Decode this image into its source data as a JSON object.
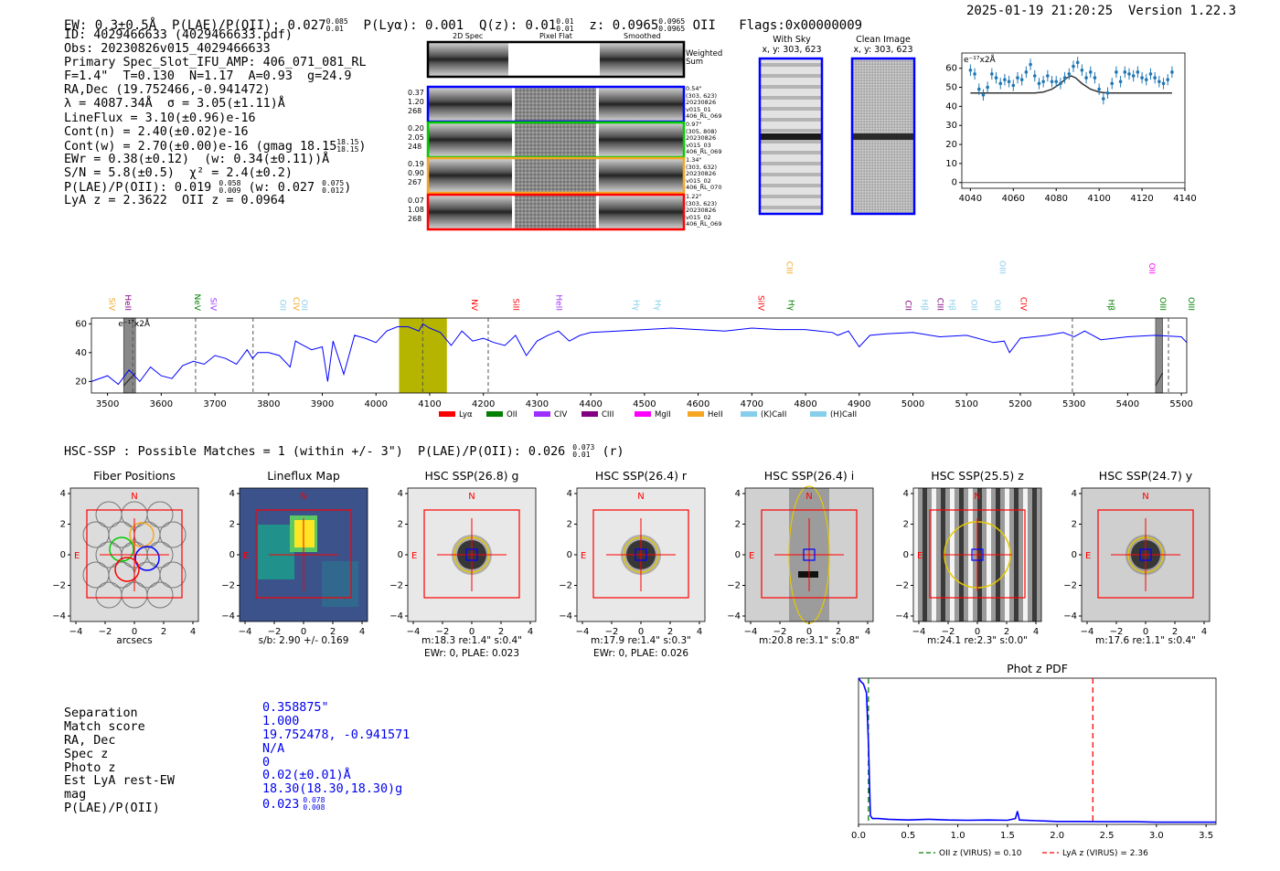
{
  "header": {
    "ew": "EW: 0.3±0.5Å",
    "plae_label": "P(LAE)/P(OII): 0.027",
    "plae_hi": "0.085",
    "plae_lo": "0.01",
    "plya": "P(Lyα): 0.001",
    "qz_label": "Q(z): 0.01",
    "qz_hi": "0.01",
    "qz_lo": "0.01",
    "z_label": "z: 0.0965",
    "z_hi": "0.0965",
    "z_lo": "0.0965",
    "z_line": "OII",
    "flags": "Flags:0x00000009",
    "datetime": "2025-01-19 21:20:25  Version 1.22.3"
  },
  "info": {
    "l1": "ID: 4029466633 (4029466633.pdf)",
    "l2": "Obs: 20230826v015_4029466633",
    "l3": "Primary Spec_Slot_IFU_AMP: 406_071_081_RL",
    "l4": "F=1.4\"  T=0.130  N=1.17  A=0.93  g=24.9",
    "l5": "RA,Dec (19.752466,-0.941472)",
    "l6": "λ = 4087.34Å  σ = 3.05(±1.11)Å",
    "l7": "LineFlux = 3.10(±0.96)e-16",
    "l8": "Cont(n) = 2.40(±0.02)e-16",
    "l9": "Cont(w) = 2.70(±0.00)e-16 (gmag 18.15",
    "l9_hi": "18.15",
    "l9_lo": "18.15",
    "l9_end": ")",
    "l10": "EWr = 0.38(±0.12)  (w: 0.34(±0.11))Å",
    "l11": "S/N = 5.8(±0.5)  χ² = 2.4(±0.2)",
    "l12": "P(LAE)/P(OII): 0.019",
    "l12_hi": "0.058",
    "l12_lo": "0.009",
    "l12_mid": "(w: 0.027",
    "l12_hi2": "0.075",
    "l12_lo2": "0.012",
    "l12_end": ")",
    "l13": "LyA z = 2.3622  OII z = 0.0964"
  },
  "cutouts": {
    "col_2d": "2D Spec",
    "col_flat": "Pixel Flat",
    "col_smooth": "Smoothed",
    "weighted": "Weighted",
    "sum": "Sum",
    "rows": [
      {
        "a": "0.37",
        "b": "1.20",
        "c": "268",
        "d1": "0.54\"",
        "d2": "(303, 623)",
        "d3": "20230826",
        "d4": "v015_01",
        "d5": "406_RL_069"
      },
      {
        "a": "0.20",
        "b": "2.05",
        "c": "248",
        "d1": "0.97\"",
        "d2": "(305, 808)",
        "d3": "20230826",
        "d4": "v015_03",
        "d5": "406_RL_069"
      },
      {
        "a": "0.19",
        "b": "0.90",
        "c": "267",
        "d1": "1.34\"",
        "d2": "(303, 632)",
        "d3": "20230826",
        "d4": "v015_02",
        "d5": "406_RL_070"
      },
      {
        "a": "0.07",
        "b": "1.08",
        "c": "268",
        "d1": "1.22\"",
        "d2": "(303, 623)",
        "d3": "20230826",
        "d4": "v015_02",
        "d5": "406_RL_069"
      }
    ],
    "with_sky": "With Sky",
    "with_sky_xy": "x, y: 303, 623",
    "clean": "Clean Image",
    "clean_xy": "x, y: 303, 623"
  },
  "colors": {
    "blue": "#0000ff",
    "green": "#00cc00",
    "orange": "#f5a623",
    "red": "#ff0000",
    "olive": "#b5b500",
    "mpl": "#1f77b4"
  },
  "chart_data": [
    {
      "type": "scatter",
      "name": "line-fit",
      "ylabel": "e⁻¹⁷x2Å",
      "x": [
        4040,
        4042,
        4044,
        4046,
        4048,
        4050,
        4052,
        4054,
        4056,
        4058,
        4060,
        4062,
        4064,
        4066,
        4068,
        4070,
        4072,
        4074,
        4076,
        4078,
        4080,
        4082,
        4084,
        4086,
        4088,
        4090,
        4092,
        4094,
        4096,
        4098,
        4100,
        4102,
        4104,
        4106,
        4108,
        4110,
        4112,
        4114,
        4116,
        4118,
        4120,
        4122,
        4124,
        4126,
        4128,
        4130,
        4132,
        4134
      ],
      "y": [
        59,
        57,
        49,
        46,
        50,
        57,
        55,
        52,
        54,
        53,
        51,
        55,
        54,
        58,
        62,
        56,
        52,
        53,
        56,
        53,
        53,
        52,
        55,
        57,
        61,
        63,
        59,
        55,
        58,
        55,
        49,
        44,
        47,
        52,
        58,
        53,
        58,
        57,
        56,
        58,
        55,
        54,
        57,
        55,
        53,
        52,
        54,
        58
      ],
      "fit_x": [
        4040,
        4070,
        4074,
        4078,
        4082,
        4085,
        4087,
        4089,
        4092,
        4096,
        4100,
        4104,
        4134
      ],
      "fit_y": [
        47,
        47,
        47.5,
        49,
        52,
        55,
        56,
        55,
        52,
        49,
        47.5,
        47,
        47
      ],
      "xlim": [
        4036,
        4140
      ],
      "ylim": [
        -3,
        68
      ],
      "xticks": [
        4040,
        4060,
        4080,
        4100,
        4120,
        4140
      ],
      "yticks": [
        0,
        10,
        20,
        30,
        40,
        50,
        60
      ]
    },
    {
      "type": "line",
      "name": "full-spectrum",
      "ylabel": "e⁻¹⁷x2Å",
      "xlim": [
        3470,
        5510
      ],
      "ylim": [
        12,
        64
      ],
      "xticks": [
        3500,
        3600,
        3700,
        3800,
        3900,
        4000,
        4100,
        4200,
        4300,
        4400,
        4500,
        4600,
        4700,
        4800,
        4900,
        5000,
        5100,
        5200,
        5300,
        5400,
        5500
      ],
      "yticks": [
        20,
        40,
        60
      ],
      "x": [
        3470,
        3500,
        3520,
        3540,
        3560,
        3580,
        3600,
        3620,
        3640,
        3660,
        3680,
        3700,
        3720,
        3740,
        3760,
        3770,
        3780,
        3800,
        3820,
        3840,
        3850,
        3860,
        3880,
        3900,
        3910,
        3920,
        3940,
        3960,
        3980,
        4000,
        4020,
        4040,
        4060,
        4080,
        4087,
        4100,
        4120,
        4140,
        4160,
        4180,
        4200,
        4220,
        4240,
        4260,
        4280,
        4300,
        4320,
        4340,
        4360,
        4380,
        4400,
        4450,
        4500,
        4550,
        4600,
        4650,
        4700,
        4750,
        4800,
        4850,
        4860,
        4880,
        4900,
        4920,
        4950,
        5000,
        5050,
        5100,
        5150,
        5170,
        5180,
        5200,
        5250,
        5280,
        5300,
        5320,
        5350,
        5400,
        5450,
        5500,
        5510
      ],
      "y": [
        20,
        24,
        18,
        28,
        20,
        30,
        24,
        22,
        31,
        34,
        32,
        38,
        36,
        32,
        42,
        36,
        40,
        40,
        38,
        30,
        48,
        46,
        42,
        44,
        20,
        48,
        25,
        52,
        50,
        47,
        55,
        58,
        58,
        55,
        60,
        57,
        54,
        45,
        55,
        48,
        50,
        47,
        45,
        52,
        38,
        48,
        52,
        55,
        48,
        52,
        54,
        55,
        56,
        57,
        56,
        55,
        57,
        56,
        56,
        54,
        52,
        55,
        44,
        52,
        53,
        54,
        51,
        52,
        47,
        48,
        40,
        50,
        52,
        54,
        51,
        55,
        49,
        51,
        52,
        51,
        47
      ],
      "bands": [
        {
          "x1": 4043,
          "x2": 4132,
          "kind": "olive"
        },
        {
          "x1": 3530,
          "x2": 3552,
          "kind": "gray"
        },
        {
          "x1": 5452,
          "x2": 5465,
          "kind": "gray"
        }
      ],
      "vlines": [
        3547,
        3664,
        3771,
        4087,
        4209,
        5297,
        5476
      ],
      "lines": [
        {
          "label": "SiV",
          "x": 3503,
          "color": "#f5a623"
        },
        {
          "label": "HeII",
          "x": 3533,
          "color": "#800080"
        },
        {
          "label": "NeV",
          "x": 3662,
          "color": "#008000"
        },
        {
          "label": "SiV",
          "x": 3692,
          "color": "#9b30ff"
        },
        {
          "label": "OII",
          "x": 3822,
          "color": "#87ceeb"
        },
        {
          "label": "CIV",
          "x": 3846,
          "color": "#f5a623"
        },
        {
          "label": "OII",
          "x": 3862,
          "color": "#87ceeb"
        },
        {
          "label": "NV",
          "x": 4178,
          "color": "#ff0000"
        },
        {
          "label": "SiII",
          "x": 4256,
          "color": "#ff0000"
        },
        {
          "label": "HeII",
          "x": 4336,
          "color": "#9b30ff"
        },
        {
          "label": "Hγ",
          "x": 4480,
          "color": "#87ceeb"
        },
        {
          "label": "Hγ",
          "x": 4520,
          "color": "#87ceeb"
        },
        {
          "label": "SiIV",
          "x": 4712,
          "color": "#ff0000"
        },
        {
          "label": "Hγ",
          "x": 4768,
          "color": "#008000"
        },
        {
          "label": "CIII",
          "x": 4765,
          "color": "#f5a623",
          "high": true
        },
        {
          "label": "CII",
          "x": 4986,
          "color": "#800080"
        },
        {
          "label": "Hβ",
          "x": 5017,
          "color": "#87ceeb"
        },
        {
          "label": "CIII",
          "x": 5046,
          "color": "#800080"
        },
        {
          "label": "Hβ",
          "x": 5068,
          "color": "#87ceeb"
        },
        {
          "label": "OII",
          "x": 5109,
          "color": "#87ceeb"
        },
        {
          "label": "OII",
          "x": 5152,
          "color": "#87ceeb"
        },
        {
          "label": "CIV",
          "x": 5201,
          "color": "#ff0000"
        },
        {
          "label": "OIII",
          "x": 5162,
          "color": "#87ceeb",
          "high": true
        },
        {
          "label": "OII",
          "x": 5440,
          "color": "#ff00ff",
          "high": true
        },
        {
          "label": "Hβ",
          "x": 5364,
          "color": "#008000"
        },
        {
          "label": "OIII",
          "x": 5461,
          "color": "#008000"
        },
        {
          "label": "OIII",
          "x": 5513,
          "color": "#008000"
        }
      ]
    },
    {
      "type": "line",
      "name": "phot-z-pdf",
      "title": "Phot z PDF",
      "xlim": [
        0,
        3.6
      ],
      "xticks": [
        0.0,
        0.5,
        1.0,
        1.5,
        2.0,
        2.5,
        3.0,
        3.5
      ],
      "x": [
        0,
        0.02,
        0.05,
        0.08,
        0.1,
        0.12,
        0.14,
        0.2,
        0.3,
        0.5,
        0.7,
        0.9,
        1.1,
        1.3,
        1.5,
        1.58,
        1.6,
        1.62,
        1.8,
        2.0,
        2.2,
        2.5,
        2.8,
        3.0,
        3.3,
        3.6
      ],
      "y": [
        1.0,
        0.98,
        0.96,
        0.9,
        0.55,
        0.06,
        0.04,
        0.04,
        0.035,
        0.03,
        0.035,
        0.03,
        0.028,
        0.03,
        0.028,
        0.04,
        0.09,
        0.03,
        0.025,
        0.02,
        0.02,
        0.018,
        0.018,
        0.015,
        0.015,
        0.015
      ],
      "legend": [
        {
          "label": "OII z (VIRUS) = 0.10",
          "color": "#008000",
          "x": 0.1
        },
        {
          "label": "LyA z (VIRUS) = 2.36",
          "color": "#ff0000",
          "x": 2.36
        }
      ]
    }
  ],
  "legend_lines": [
    {
      "label": "Lyα",
      "color": "#ff0000"
    },
    {
      "label": "OII",
      "color": "#008000"
    },
    {
      "label": "CIV",
      "color": "#9b30ff"
    },
    {
      "label": "CIII",
      "color": "#800080"
    },
    {
      "label": "MgII",
      "color": "#ff00ff"
    },
    {
      "label": "HeII",
      "color": "#f5a623"
    },
    {
      "label": "(K)CaII",
      "color": "#87ceeb"
    },
    {
      "label": "(H)CaII",
      "color": "#87ceeb"
    }
  ],
  "hsc": {
    "headline": "HSC-SSP : Possible Matches = 1 (within +/- 3\")  P(LAE)/P(OII): 0.026",
    "hi": "0.073",
    "lo": "0.01",
    "tail": "(r)",
    "ticks": [
      "−4",
      "−2",
      "0",
      "2",
      "4"
    ],
    "panels": [
      {
        "title": "Fiber Positions",
        "cap1": "arcsecs",
        "cap2": ""
      },
      {
        "title": "Lineflux Map",
        "cap1": "s/b: 2.90 +/- 0.169",
        "cap2": ""
      },
      {
        "title": "HSC SSP(26.8) g",
        "cap1": "m:18.3  re:1.4\"  s:0.4\"",
        "cap2": "EWr: 0, PLAE: 0.023"
      },
      {
        "title": "HSC SSP(26.4) r",
        "cap1": "m:17.9  re:1.4\"  s:0.3\"",
        "cap2": "EWr: 0, PLAE: 0.026"
      },
      {
        "title": "HSC SSP(26.4) i",
        "cap1": "m:20.8  re:3.1\"  s:0.8\"",
        "cap2": ""
      },
      {
        "title": "HSC SSP(25.5) z",
        "cap1": "m:24.1  re:2.3\"  s:0.0\"",
        "cap2": ""
      },
      {
        "title": "HSC SSP(24.7) y",
        "cap1": "m:17.6  re:1.1\"  s:0.4\"",
        "cap2": ""
      }
    ],
    "n": "N",
    "e": "E"
  },
  "summary": {
    "labels": [
      "Separation",
      "Match score",
      "RA, Dec",
      "Spec z",
      "Photo z",
      "Est LyA rest-EW",
      "mag",
      "P(LAE)/P(OII)"
    ],
    "values": [
      "0.358875\"",
      "1.000",
      "19.752478, -0.941571",
      "N/A",
      "0",
      "0.02(±0.01)Å",
      "18.30(18.30,18.30)g",
      "0.023"
    ],
    "plae_hi": "0.078",
    "plae_lo": "0.008"
  }
}
